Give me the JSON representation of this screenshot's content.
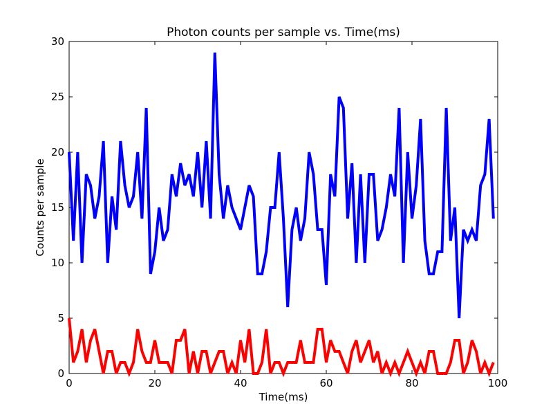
{
  "chart_data": {
    "type": "line",
    "title": "Photon counts per sample vs. Time(ms)",
    "xlabel": "Time(ms)",
    "ylabel": "Counts per sample",
    "xlim": [
      0,
      100
    ],
    "ylim": [
      0,
      30
    ],
    "xticks": [
      "0",
      "20",
      "40",
      "60",
      "80",
      "100"
    ],
    "yticks": [
      "0",
      "5",
      "10",
      "15",
      "20",
      "25",
      "30"
    ],
    "grid": false,
    "legend": "none",
    "x": [
      0,
      1,
      2,
      3,
      4,
      5,
      6,
      7,
      8,
      9,
      10,
      11,
      12,
      13,
      14,
      15,
      16,
      17,
      18,
      19,
      20,
      21,
      22,
      23,
      24,
      25,
      26,
      27,
      28,
      29,
      30,
      31,
      32,
      33,
      34,
      35,
      36,
      37,
      38,
      39,
      40,
      41,
      42,
      43,
      44,
      45,
      46,
      47,
      48,
      49,
      50,
      51,
      52,
      53,
      54,
      55,
      56,
      57,
      58,
      59,
      60,
      61,
      62,
      63,
      64,
      65,
      66,
      67,
      68,
      69,
      70,
      71,
      72,
      73,
      74,
      75,
      76,
      77,
      78,
      79,
      80,
      81,
      82,
      83,
      84,
      85,
      86,
      87,
      88,
      89,
      90,
      91,
      92,
      93,
      94,
      95,
      96,
      97,
      98,
      99
    ],
    "series": [
      {
        "color": "#0000ff",
        "values": [
          20,
          12,
          20,
          10,
          18,
          17,
          14,
          16,
          21,
          10,
          16,
          13,
          21,
          17,
          15,
          16,
          20,
          14,
          24,
          9,
          11,
          15,
          12,
          13,
          18,
          16,
          19,
          17,
          18,
          16,
          20,
          15,
          21,
          14,
          29,
          18,
          14,
          17,
          15,
          14,
          13,
          15,
          17,
          16,
          9,
          9,
          11,
          15,
          15,
          20,
          14,
          6,
          13,
          15,
          12,
          14,
          20,
          18,
          13,
          13,
          8,
          18,
          16,
          25,
          24,
          14,
          19,
          10,
          18,
          10,
          18,
          18,
          12,
          13,
          15,
          18,
          16,
          24,
          10,
          20,
          14,
          17,
          23,
          12,
          9,
          9,
          11,
          11,
          24,
          12,
          15,
          5,
          13,
          12,
          13,
          12,
          17,
          18,
          23,
          14
        ]
      },
      {
        "color": "#ff0000",
        "values": [
          5,
          1,
          2,
          4,
          1,
          3,
          4,
          2,
          0,
          2,
          2,
          0,
          1,
          1,
          0,
          1,
          4,
          2,
          1,
          1,
          3,
          1,
          1,
          1,
          0,
          3,
          3,
          4,
          0,
          2,
          0,
          2,
          2,
          0,
          1,
          2,
          2,
          0,
          1,
          0,
          3,
          1,
          4,
          0,
          0,
          1,
          4,
          0,
          1,
          1,
          0,
          1,
          1,
          1,
          3,
          1,
          1,
          1,
          4,
          4,
          1,
          3,
          2,
          2,
          1,
          0,
          2,
          3,
          1,
          2,
          3,
          1,
          2,
          0,
          1,
          0,
          1,
          0,
          1,
          2,
          1,
          0,
          1,
          0,
          2,
          2,
          0,
          0,
          0,
          1,
          3,
          3,
          0,
          1,
          3,
          2,
          0,
          1,
          0,
          1
        ]
      }
    ]
  }
}
